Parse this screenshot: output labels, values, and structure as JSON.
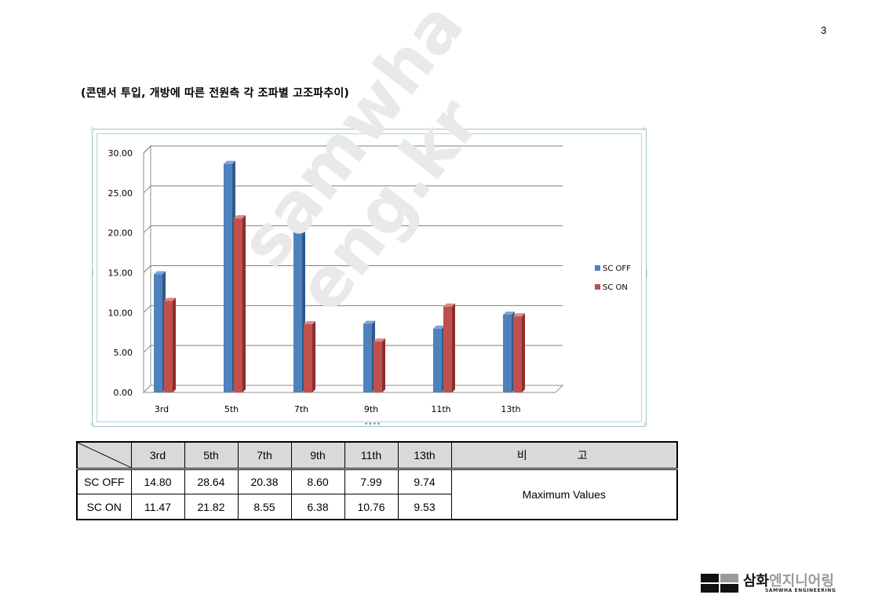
{
  "page_number": "3",
  "heading": "(콘덴서 투입, 개방에 따른 전원측 각 조파별 고조파추이)",
  "watermark": {
    "line1": "samwha",
    "line2": "eng.kr"
  },
  "colors": {
    "sc_off": "#4f81bd",
    "sc_on": "#c0504d",
    "grid": "#7f7f7f"
  },
  "chart_data": {
    "type": "bar",
    "categories": [
      "3rd",
      "5th",
      "7th",
      "9th",
      "11th",
      "13th"
    ],
    "series": [
      {
        "name": "SC OFF",
        "values": [
          14.8,
          28.64,
          20.38,
          8.6,
          7.99,
          9.74
        ]
      },
      {
        "name": "SC ON",
        "values": [
          11.47,
          21.82,
          8.55,
          6.38,
          10.76,
          9.53
        ]
      }
    ],
    "ylim": [
      0,
      30
    ],
    "yticks": [
      "0.00",
      "5.00",
      "10.00",
      "15.00",
      "20.00",
      "25.00",
      "30.00"
    ],
    "legend_position": "right",
    "grid": true,
    "three_d": true
  },
  "table": {
    "headers": [
      "3rd",
      "5th",
      "7th",
      "9th",
      "11th",
      "13th"
    ],
    "remark_header": "비 고",
    "rows": [
      {
        "label": "SC OFF",
        "values": [
          "14.80",
          "28.64",
          "20.38",
          "8.60",
          "7.99",
          "9.74"
        ]
      },
      {
        "label": "SC ON",
        "values": [
          "11.47",
          "21.82",
          "8.55",
          "6.38",
          "10.76",
          "9.53"
        ]
      }
    ],
    "remark": "Maximum Values"
  },
  "logo": {
    "name_bold": "삼화",
    "name_light": "엔지니어링",
    "subtitle": "SAMWHA ENGINEERING"
  }
}
